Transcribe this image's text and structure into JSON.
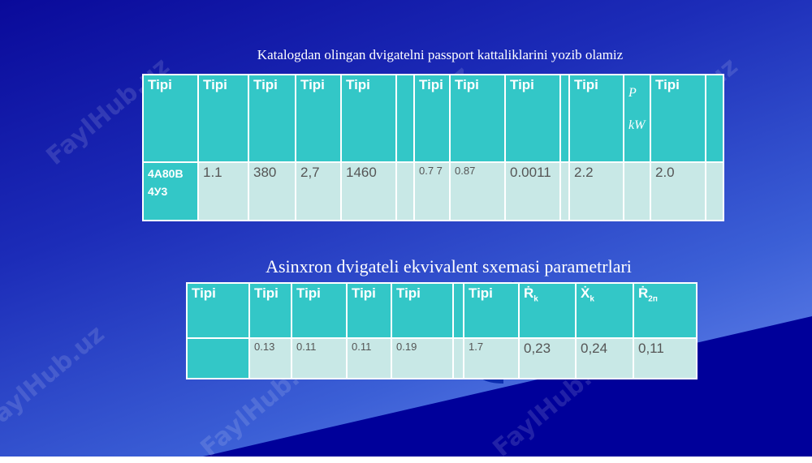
{
  "slide_title": "Katalogdan olingan dvigatelni passport kattaliklarini yozib olamiz",
  "table1": {
    "headers": [
      "Tipi",
      "Tipi",
      "Tipi",
      "Tipi",
      "Tipi",
      "",
      "Tipi",
      "Tipi",
      "Tipi",
      "",
      "Tipi",
      "P kW",
      "Tipi",
      ""
    ],
    "row": [
      "4A80B 4У3",
      "1.1",
      "380",
      "2,7",
      "1460",
      "",
      "0.7 7",
      "0.87",
      "0.0011",
      "",
      "2.2",
      "",
      "2.0",
      ""
    ]
  },
  "section_title": "Asinxron dvigateli ekvivalent sxemasi parametrlari",
  "table2": {
    "headers": [
      {
        "t": "Tipi",
        "s": ""
      },
      {
        "t": "Tipi",
        "s": ""
      },
      {
        "t": "Tipi",
        "s": ""
      },
      {
        "t": "Tipi",
        "s": ""
      },
      {
        "t": "Tipi",
        "s": ""
      },
      {
        "t": "",
        "s": ""
      },
      {
        "t": "Tipi",
        "s": ""
      },
      {
        "t": "Ṙ",
        "s": "k"
      },
      {
        "t": "Ẋ",
        "s": "k"
      },
      {
        "t": "Ṙ",
        "s": "2п"
      }
    ],
    "row": [
      "",
      "0.13",
      "0.11",
      "0.11",
      "0.19",
      "",
      "1.7",
      "0,23",
      "0,24",
      "0,11"
    ]
  },
  "watermark": "FaylHub.uz",
  "colors": {
    "header": "#33c7c7",
    "cell": "#c8e8e6",
    "bg_dark": "#0a0a9a"
  }
}
